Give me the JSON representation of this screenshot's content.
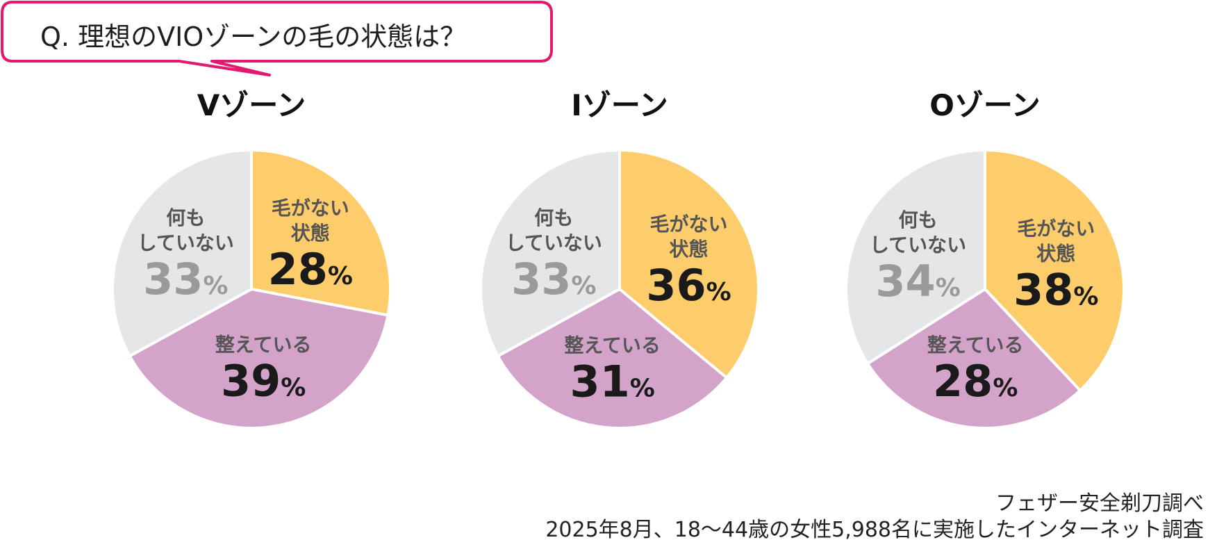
{
  "question": "Q. 理想のVIOゾーンの毛の状態は？",
  "colors": {
    "hairless": "#fdcd6b",
    "trimmed": "#d3a3ca",
    "nothing": "#e5e6e8",
    "bubble_border": "#e3196f"
  },
  "chart_data": [
    {
      "type": "pie",
      "title": "Vゾーン",
      "slices": [
        {
          "label": "毛がない状態",
          "lines": [
            "毛がない",
            "状態"
          ],
          "value": 28,
          "pct": "28",
          "color": "#fdcd6b"
        },
        {
          "label": "整えている",
          "lines": [
            "整えている"
          ],
          "value": 39,
          "pct": "39",
          "color": "#d3a3ca"
        },
        {
          "label": "何もしていない",
          "lines": [
            "何も",
            "していない"
          ],
          "value": 33,
          "pct": "33",
          "color": "#e5e6e8"
        }
      ]
    },
    {
      "type": "pie",
      "title": "Iゾーン",
      "slices": [
        {
          "label": "毛がない状態",
          "lines": [
            "毛がない",
            "状態"
          ],
          "value": 36,
          "pct": "36",
          "color": "#fdcd6b"
        },
        {
          "label": "整えている",
          "lines": [
            "整えている"
          ],
          "value": 31,
          "pct": "31",
          "color": "#d3a3ca"
        },
        {
          "label": "何もしていない",
          "lines": [
            "何も",
            "していない"
          ],
          "value": 33,
          "pct": "33",
          "color": "#e5e6e8"
        }
      ]
    },
    {
      "type": "pie",
      "title": "Oゾーン",
      "slices": [
        {
          "label": "毛がない状態",
          "lines": [
            "毛がない",
            "状態"
          ],
          "value": 38,
          "pct": "38",
          "color": "#fdcd6b"
        },
        {
          "label": "整えている",
          "lines": [
            "整えている"
          ],
          "value": 28,
          "pct": "28",
          "color": "#d3a3ca"
        },
        {
          "label": "何もしていない",
          "lines": [
            "何も",
            "していない"
          ],
          "value": 34,
          "pct": "34",
          "color": "#e5e6e8"
        }
      ]
    }
  ],
  "footer": {
    "source": "フェザー安全剃刀調べ",
    "survey": "2025年8月、18～44歳の女性5,988名に実施したインターネット調査"
  }
}
